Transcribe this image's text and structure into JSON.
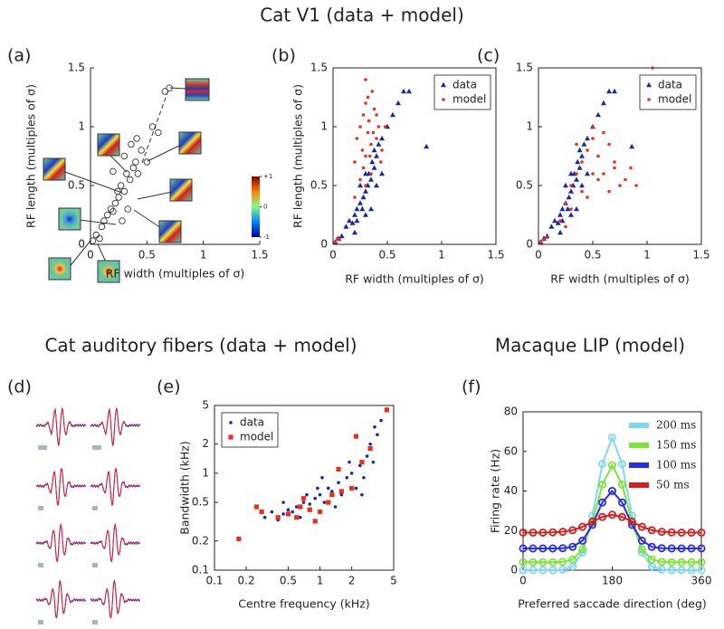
{
  "headings": [
    "Cat V1 (data + model)",
    "Cat auditory fibers (data + model)",
    "Macaque LIP (model)"
  ],
  "waveform_panel_label": "(d)",
  "chart_data": [
    {
      "type": "scatter",
      "panel_label": "(a)",
      "xlabel": "RF width (multiples of σ)",
      "ylabel": "RF length (multiples of σ)",
      "xlim": [
        0,
        1.5
      ],
      "ylim": [
        0,
        1.5
      ],
      "xticks": [
        0,
        0.5,
        1,
        1.5
      ],
      "yticks": [
        0,
        0.5,
        1,
        1.5
      ],
      "frame": false,
      "colorbar_ticks": [
        {
          "value": 1,
          "label": "+1"
        },
        0,
        -1
      ],
      "series": [
        {
          "marker": "circle-open",
          "color": "#333333",
          "x": [
            0.02,
            0.05,
            0.08,
            0.1,
            0.12,
            0.15,
            0.18,
            0.2,
            0.22,
            0.25,
            0.27,
            0.3,
            0.32,
            0.35,
            0.38,
            0.4,
            0.42,
            0.45,
            0.28,
            0.33,
            0.24,
            0.36,
            0.41,
            0.5,
            0.55,
            0.6,
            0.66,
            0.7,
            0.2,
            0.3
          ],
          "values": [
            0.03,
            0.08,
            0.05,
            0.15,
            0.2,
            0.25,
            0.3,
            0.28,
            0.35,
            0.4,
            0.5,
            0.45,
            0.6,
            0.55,
            0.65,
            0.7,
            0.6,
            0.8,
            0.2,
            0.3,
            0.45,
            0.85,
            0.9,
            0.7,
            1.0,
            0.95,
            1.3,
            1.33,
            0.62,
            0.75
          ]
        }
      ]
    },
    {
      "type": "scatter",
      "panel_label": "(b)",
      "xlabel": "RF width (multiples of σ)",
      "ylabel": "RF length (multiples of σ)",
      "xlim": [
        0,
        1.5
      ],
      "ylim": [
        0,
        1.5
      ],
      "xticks": [
        0,
        0.5,
        1,
        1.5
      ],
      "yticks": [
        0,
        0.5,
        1,
        1.5
      ],
      "frame": true,
      "legend": "upper right",
      "series": [
        {
          "name": "data",
          "marker": "triangle",
          "color": "#1a2a9c",
          "x": [
            0.02,
            0.05,
            0.08,
            0.12,
            0.15,
            0.18,
            0.2,
            0.22,
            0.25,
            0.27,
            0.28,
            0.3,
            0.3,
            0.32,
            0.33,
            0.35,
            0.36,
            0.38,
            0.4,
            0.42,
            0.45,
            0.5,
            0.55,
            0.6,
            0.65,
            0.7,
            0.86,
            0.25,
            0.2,
            0.35,
            0.4,
            0.3,
            0.22,
            0.45,
            0.38
          ],
          "values": [
            0.02,
            0.05,
            0.07,
            0.15,
            0.2,
            0.18,
            0.25,
            0.3,
            0.35,
            0.3,
            0.4,
            0.45,
            0.25,
            0.5,
            0.6,
            0.55,
            0.7,
            0.65,
            0.75,
            0.85,
            0.9,
            1.0,
            1.1,
            1.2,
            1.3,
            1.3,
            0.83,
            0.5,
            0.1,
            0.3,
            0.5,
            0.6,
            0.2,
            0.6,
            0.8
          ]
        },
        {
          "name": "model",
          "marker": "dot",
          "color": "#e8301e",
          "x": [
            0.02,
            0.04,
            0.06,
            0.2,
            0.22,
            0.25,
            0.27,
            0.28,
            0.3,
            0.3,
            0.32,
            0.33,
            0.35,
            0.36,
            0.38,
            0.4,
            0.42,
            0.44,
            0.25,
            0.3,
            0.35,
            0.28,
            0.4,
            0.32,
            0.37,
            0.45,
            0.48,
            0.2,
            0.34,
            0.3
          ],
          "values": [
            0.02,
            0.05,
            0.04,
            0.7,
            0.9,
            1.0,
            0.8,
            1.1,
            0.75,
            1.2,
            0.95,
            1.05,
            0.85,
            1.3,
            1.15,
            0.9,
            1.0,
            0.7,
            0.55,
            1.4,
            0.6,
            0.65,
            1.1,
            1.25,
            0.95,
            0.8,
            1.0,
            0.4,
            0.75,
            0.5
          ]
        }
      ]
    },
    {
      "type": "scatter",
      "panel_label": "(c)",
      "xlabel": "RF width (multiples of σ)",
      "xlim": [
        0,
        1.5
      ],
      "ylim": [
        0,
        1.5
      ],
      "xticks": [
        0,
        0.5,
        1,
        1.5
      ],
      "yticks": [
        0,
        0.5,
        1,
        1.5
      ],
      "frame": true,
      "legend": "upper right",
      "series": [
        {
          "name": "data",
          "marker": "triangle",
          "color": "#1a2a9c",
          "x": [
            0.02,
            0.05,
            0.08,
            0.12,
            0.15,
            0.18,
            0.2,
            0.22,
            0.25,
            0.27,
            0.28,
            0.3,
            0.3,
            0.32,
            0.33,
            0.35,
            0.36,
            0.38,
            0.4,
            0.42,
            0.45,
            0.5,
            0.55,
            0.6,
            0.65,
            0.7,
            0.86,
            0.25,
            0.2,
            0.35,
            0.4,
            0.3,
            0.22,
            0.45,
            0.38
          ],
          "values": [
            0.02,
            0.05,
            0.07,
            0.15,
            0.2,
            0.18,
            0.25,
            0.3,
            0.35,
            0.3,
            0.4,
            0.45,
            0.25,
            0.5,
            0.6,
            0.55,
            0.7,
            0.65,
            0.75,
            0.85,
            0.9,
            1.0,
            1.1,
            1.2,
            1.3,
            1.3,
            0.83,
            0.5,
            0.1,
            0.3,
            0.5,
            0.6,
            0.2,
            0.6,
            0.8
          ]
        },
        {
          "name": "model",
          "marker": "dot",
          "color": "#e8301e",
          "x": [
            0.02,
            0.05,
            0.08,
            0.2,
            0.25,
            0.3,
            0.35,
            0.4,
            0.45,
            0.5,
            0.55,
            0.6,
            0.65,
            0.7,
            0.75,
            0.8,
            0.85,
            0.9,
            0.3,
            0.4,
            0.5,
            0.6,
            0.7,
            0.35,
            0.45,
            0.55,
            0.65,
            0.25,
            0.5,
            1.05
          ],
          "values": [
            0.02,
            0.04,
            0.06,
            0.2,
            0.35,
            0.5,
            0.6,
            0.7,
            0.8,
            0.9,
            0.75,
            0.6,
            0.85,
            0.7,
            0.5,
            0.55,
            0.65,
            0.5,
            0.3,
            0.45,
            1.0,
            0.95,
            0.65,
            0.85,
            0.4,
            0.55,
            0.45,
            0.15,
            0.6,
            1.5
          ]
        }
      ]
    },
    {
      "type": "scatter",
      "panel_label": "(e)",
      "xlabel": "Centre frequency (kHz)",
      "ylabel": "Bandwidth (kHz)",
      "xlim": [
        0.1,
        5
      ],
      "ylim": [
        0.1,
        5
      ],
      "xticks": [
        0.1,
        0.2,
        0.5,
        1,
        2,
        5
      ],
      "yticks": [
        0.1,
        0.2,
        0.5,
        1,
        2,
        5
      ],
      "xscale": "log",
      "yscale": "log",
      "frame": true,
      "legend": "upper left",
      "series": [
        {
          "name": "data",
          "marker": "dot",
          "color": "#1a2a9c",
          "x": [
            0.3,
            0.35,
            0.4,
            0.45,
            0.5,
            0.55,
            0.6,
            0.7,
            0.8,
            0.9,
            1.0,
            1.1,
            1.2,
            1.3,
            1.5,
            1.6,
            1.8,
            2.0,
            2.2,
            2.4,
            2.6,
            2.8,
            3.0,
            3.2,
            3.5,
            3.8,
            0.45,
            0.65,
            0.95,
            1.4,
            1.9,
            2.5,
            3.3,
            0.75,
            1.05
          ],
          "values": [
            0.35,
            0.4,
            0.33,
            0.38,
            0.42,
            0.4,
            0.45,
            0.5,
            0.48,
            0.55,
            0.6,
            0.5,
            0.7,
            0.65,
            0.8,
            0.6,
            0.9,
            1.0,
            0.7,
            1.2,
            0.9,
            1.5,
            2.0,
            1.3,
            2.5,
            3.5,
            0.5,
            0.35,
            0.7,
            0.45,
            1.3,
            0.6,
            3.0,
            0.6,
            0.9
          ]
        },
        {
          "name": "model",
          "marker": "square",
          "color": "#e8301e",
          "x": [
            0.17,
            0.25,
            0.28,
            0.4,
            0.5,
            0.6,
            0.65,
            0.7,
            0.8,
            0.9,
            1.0,
            1.2,
            1.3,
            1.5,
            1.6,
            2.0,
            2.2,
            2.5,
            3.0,
            4.3
          ],
          "values": [
            0.21,
            0.45,
            0.4,
            0.35,
            0.38,
            0.35,
            0.45,
            0.55,
            0.42,
            0.32,
            0.4,
            0.5,
            0.6,
            1.1,
            0.65,
            0.7,
            2.4,
            1.3,
            1.8,
            4.5
          ]
        }
      ]
    },
    {
      "type": "line",
      "panel_label": "(f)",
      "xlabel": "Preferred saccade direction (deg)",
      "ylabel": "Firing rate (Hz)",
      "xlim": [
        0,
        360
      ],
      "ylim": [
        0,
        80
      ],
      "xticks": [
        0,
        180,
        360
      ],
      "yticks": [
        0,
        20,
        40,
        60,
        80
      ],
      "frame": true,
      "legend": "upper right",
      "x": [
        0,
        20,
        40,
        60,
        80,
        100,
        120,
        140,
        160,
        180,
        200,
        220,
        240,
        260,
        280,
        300,
        320,
        340,
        360
      ],
      "series": [
        {
          "name": "200 ms",
          "color": "#7fd8f0",
          "values": [
            0,
            0,
            0,
            0,
            0.3,
            1.9,
            9,
            27.5,
            53.6,
            67,
            53.6,
            27.5,
            9,
            1.9,
            0.3,
            0,
            0,
            0,
            0
          ]
        },
        {
          "name": "150 ms",
          "color": "#7ee33a",
          "values": [
            4,
            4,
            4,
            4,
            4.2,
            5.4,
            10.6,
            24.1,
            43.2,
            53,
            43.2,
            24.1,
            10.6,
            5.4,
            4.2,
            4,
            4,
            4,
            4
          ]
        },
        {
          "name": "100 ms",
          "color": "#2a2ee0",
          "values": [
            11,
            11,
            11,
            11,
            11.1,
            11.8,
            14.9,
            22.9,
            34.2,
            40,
            34.2,
            22.9,
            14.9,
            11.8,
            11.1,
            11,
            11,
            11,
            11
          ]
        },
        {
          "name": "50 ms",
          "color": "#d02020",
          "values": [
            19,
            19,
            19,
            19.1,
            19.4,
            20.2,
            21.9,
            24.5,
            26.9,
            28,
            26.9,
            24.5,
            21.9,
            20.2,
            19.4,
            19.1,
            19,
            19,
            19
          ]
        }
      ]
    }
  ]
}
